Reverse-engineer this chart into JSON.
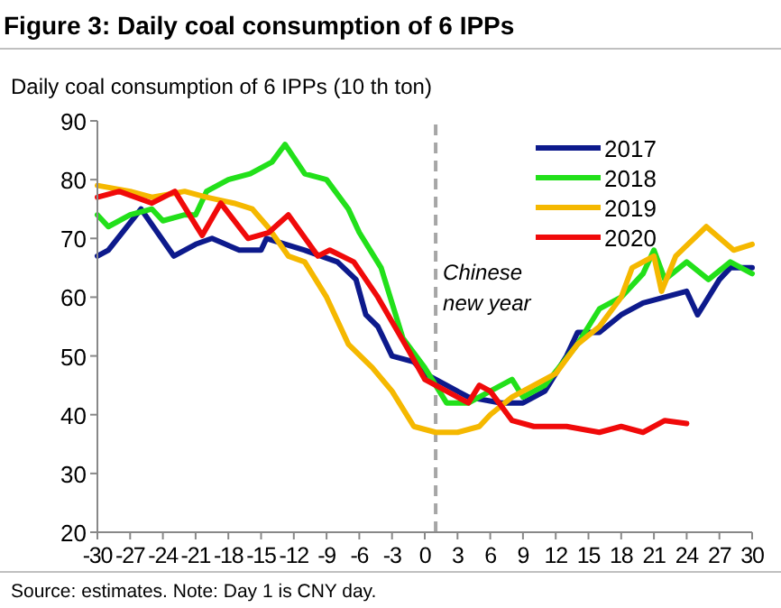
{
  "chart_data": {
    "type": "line",
    "title": "Figure 3: Daily coal consumption of 6 IPPs",
    "ylabel": "Daily coal consumption of 6 IPPs (10 th ton)",
    "series": [
      {
        "name": "2017",
        "color": "#0d1a8c",
        "x": [
          -30,
          -29,
          -26,
          -23,
          -21,
          -19.5,
          -17,
          -15,
          -14.5,
          -11,
          -8,
          -6.3,
          -5.4,
          -4.3,
          -3,
          -1,
          0,
          2,
          4,
          7,
          9,
          11,
          13,
          14,
          16,
          18,
          20,
          22,
          24,
          25,
          27,
          28,
          30
        ],
        "values": [
          67,
          68,
          75,
          67,
          69,
          70,
          68,
          68,
          70,
          68,
          66,
          63,
          57,
          55,
          50,
          49,
          47,
          45,
          43,
          42,
          42,
          44,
          50,
          54,
          54,
          57,
          59,
          60,
          61,
          57,
          63,
          65,
          65
        ]
      },
      {
        "name": "2018",
        "color": "#22e01a",
        "x": [
          -30,
          -29,
          -27,
          -25,
          -24,
          -22,
          -21,
          -20,
          -18,
          -16,
          -14,
          -12.8,
          -11,
          -9,
          -7,
          -6,
          -4,
          -2,
          0,
          2,
          4,
          6,
          8,
          9,
          11,
          14,
          16,
          18,
          20,
          21,
          22,
          24,
          26,
          28,
          30
        ],
        "values": [
          74,
          72,
          74,
          75,
          73,
          74,
          74,
          78,
          80,
          81,
          83,
          86,
          81,
          80,
          75,
          71,
          65,
          53,
          48,
          42,
          42,
          44,
          46,
          43,
          45,
          52,
          58,
          60,
          64,
          68,
          63,
          66,
          63,
          66,
          64
        ]
      },
      {
        "name": "2019",
        "color": "#f5b800",
        "x": [
          -30,
          -27,
          -25,
          -22,
          -20,
          -17.5,
          -15.8,
          -14.4,
          -12.5,
          -11,
          -9,
          -7,
          -4.8,
          -3,
          -1,
          1,
          3,
          5,
          6,
          8,
          10,
          12,
          14,
          16,
          18,
          19,
          21,
          21.7,
          23,
          25.8,
          28.3,
          30
        ],
        "values": [
          79,
          78,
          77,
          78,
          77,
          76,
          75,
          72,
          67,
          66,
          60,
          52,
          48,
          44,
          38,
          37,
          37,
          38,
          40,
          43,
          45,
          47,
          52,
          55,
          60,
          65,
          67,
          61,
          67,
          72,
          68,
          69
        ]
      },
      {
        "name": "2020",
        "color": "#f00a0a",
        "x": [
          -30,
          -28,
          -25,
          -22.9,
          -20.4,
          -18.7,
          -16.2,
          -14.3,
          -12.5,
          -9.8,
          -8.7,
          -6.5,
          -4.3,
          -1.5,
          0,
          2,
          4,
          5,
          6,
          8,
          10,
          13,
          16,
          18,
          20,
          22,
          24
        ],
        "values": [
          77,
          78,
          76,
          78,
          70.5,
          76,
          70,
          71,
          74,
          67,
          68,
          66,
          60,
          51,
          46,
          44,
          42,
          45,
          44,
          39,
          38,
          38,
          37,
          38,
          37,
          39,
          38.5
        ]
      }
    ],
    "xlim": [
      -30,
      30
    ],
    "xticks": [
      -30,
      -27,
      -24,
      -21,
      -18,
      -15,
      -12,
      -9,
      -6,
      -3,
      0,
      3,
      6,
      9,
      12,
      15,
      18,
      21,
      24,
      27,
      30
    ],
    "ylim": [
      20,
      90
    ],
    "yticks": [
      20,
      30,
      40,
      50,
      60,
      70,
      80,
      90
    ],
    "ref_lines": [
      {
        "axis": "x",
        "value": 1,
        "label": "Chinese new year",
        "color": "#a6a6a6",
        "line_style": "dashed"
      }
    ],
    "legend": "top right",
    "grid": false,
    "annotations": [
      "Source: estimates. Note: Day 1 is CNY day."
    ]
  }
}
